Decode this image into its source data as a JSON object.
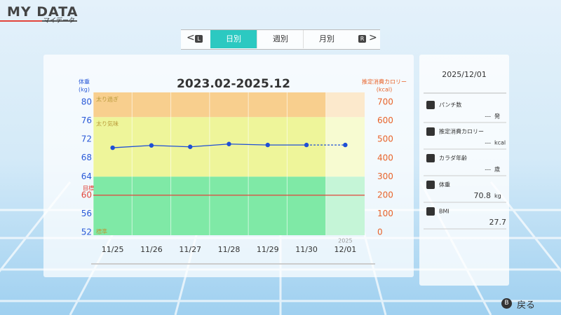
{
  "header": {
    "title": "MY DATA",
    "subtitle": "マイデータ"
  },
  "tabs": {
    "left_key": "L",
    "items": [
      "日別",
      "週別",
      "月別"
    ],
    "active": 0,
    "right_key": "R"
  },
  "chart_data": {
    "type": "line",
    "title": "2023.02-2025.12",
    "y_label": "体重",
    "y_unit": "(kg)",
    "y2_label": "推定消費カロリー",
    "y2_unit": "(kcal)",
    "categories": [
      "11/25",
      "11/26",
      "11/27",
      "11/28",
      "11/29",
      "11/30",
      "12/01"
    ],
    "year_label": "2025",
    "series": [
      {
        "name": "体重",
        "color": "#1f4fd6",
        "values": [
          70.2,
          70.7,
          70.4,
          71.0,
          70.8,
          70.8,
          70.8
        ]
      }
    ],
    "dashed_last_segment": true,
    "ylim": [
      51.4,
      82.1
    ],
    "yticks": [
      52,
      56,
      60,
      64,
      68,
      72,
      76,
      80
    ],
    "y2lim": [
      -15,
      753
    ],
    "y2ticks": [
      0,
      100,
      200,
      300,
      400,
      500,
      600,
      700
    ],
    "zones": [
      {
        "label": "標準",
        "min": 51.4,
        "color": "#7fe9a6"
      },
      {
        "label": "太り気味",
        "min": 64,
        "color": "#eef59a"
      },
      {
        "label": "太り過ぎ",
        "min": 76.8,
        "color": "#f8cf8e"
      }
    ],
    "target": {
      "label": "目標",
      "value": 60,
      "color": "#e2443a"
    },
    "grid": true
  },
  "side_panel": {
    "date": "2025/12/01",
    "items": [
      {
        "label": "パンチ数",
        "value": "---",
        "unit": "発"
      },
      {
        "label": "推定消費カロリー",
        "value": "---",
        "unit": "kcal"
      },
      {
        "label": "カラダ年齢",
        "value": "---",
        "unit": "歳"
      },
      {
        "label": "体重",
        "value": "70.8",
        "unit": "kg"
      },
      {
        "label": "BMI",
        "value": "27.7"
      }
    ]
  },
  "footer": {
    "button": "B",
    "label": "戻る"
  }
}
